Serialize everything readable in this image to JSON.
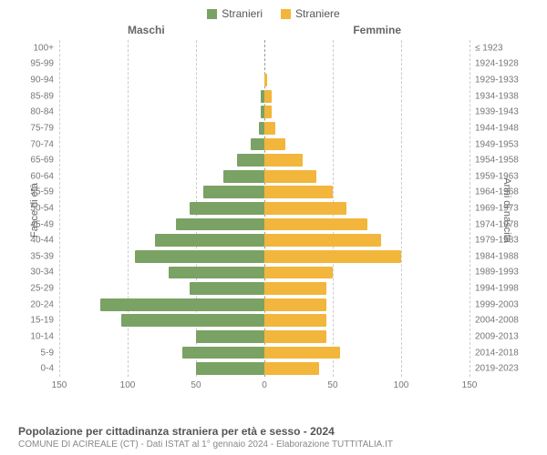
{
  "legend": {
    "male_label": "Stranieri",
    "female_label": "Straniere"
  },
  "chart": {
    "type": "population-pyramid",
    "male_header": "Maschi",
    "female_header": "Femmine",
    "left_axis_title": "Fasce di età",
    "right_axis_title": "Anni di nascita",
    "male_color": "#7aa264",
    "female_color": "#f2b63c",
    "grid_color": "#cccccc",
    "background_color": "#ffffff",
    "x_max": 150,
    "x_ticks": [
      150,
      100,
      50,
      0,
      50,
      100,
      150
    ],
    "age_labels": [
      "100+",
      "95-99",
      "90-94",
      "85-89",
      "80-84",
      "75-79",
      "70-74",
      "65-69",
      "60-64",
      "55-59",
      "50-54",
      "45-49",
      "40-44",
      "35-39",
      "30-34",
      "25-29",
      "20-24",
      "15-19",
      "10-14",
      "5-9",
      "0-4"
    ],
    "birth_labels": [
      "≤ 1923",
      "1924-1928",
      "1929-1933",
      "1934-1938",
      "1939-1943",
      "1944-1948",
      "1949-1953",
      "1954-1958",
      "1959-1963",
      "1964-1968",
      "1969-1973",
      "1974-1978",
      "1979-1983",
      "1984-1988",
      "1989-1993",
      "1994-1998",
      "1999-2003",
      "2004-2008",
      "2009-2013",
      "2014-2018",
      "2019-2023"
    ],
    "male_values": [
      0,
      0,
      0,
      3,
      3,
      4,
      10,
      20,
      30,
      45,
      55,
      65,
      80,
      95,
      70,
      55,
      120,
      105,
      50,
      60,
      50
    ],
    "female_values": [
      0,
      0,
      2,
      5,
      5,
      8,
      15,
      28,
      38,
      50,
      60,
      75,
      85,
      100,
      50,
      45,
      45,
      45,
      45,
      55,
      40
    ],
    "label_fontsize": 10
  },
  "footer": {
    "title": "Popolazione per cittadinanza straniera per età e sesso - 2024",
    "subtitle": "COMUNE DI ACIREALE (CT) - Dati ISTAT al 1° gennaio 2024 - Elaborazione TUTTITALIA.IT"
  }
}
